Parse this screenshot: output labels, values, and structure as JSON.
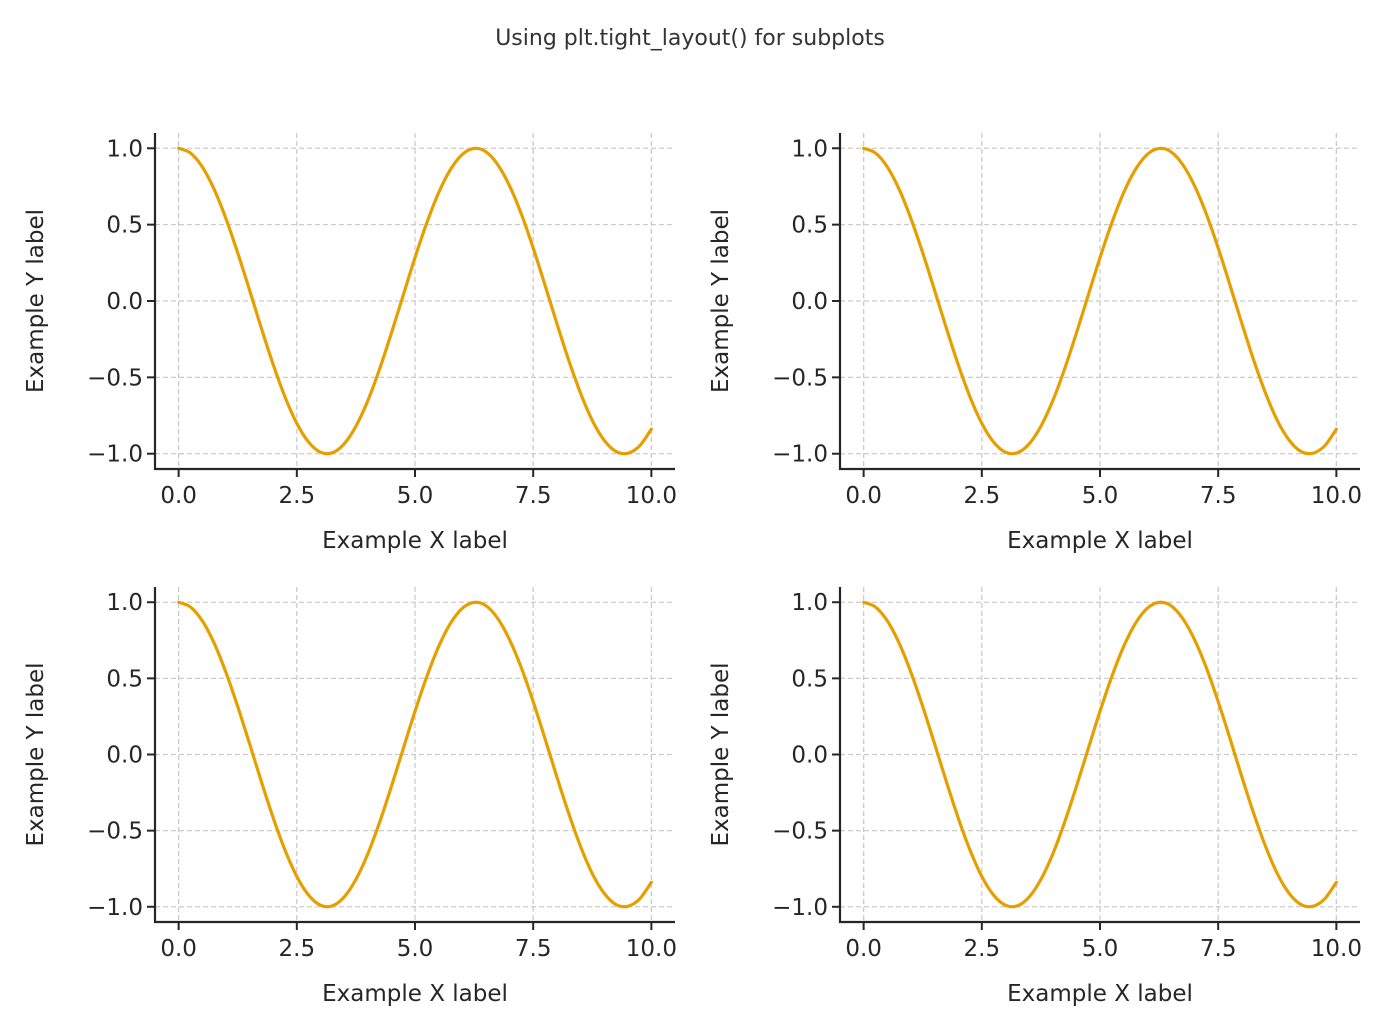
{
  "title": "Using plt.tight_layout() for subplots",
  "colors": {
    "line": "#E69F00",
    "grid": "#cccccc",
    "spine": "#262626",
    "text": "#262626"
  },
  "chart_data": [
    {
      "type": "line",
      "position": "top-left",
      "xlabel": "Example X label",
      "ylabel": "Example Y label",
      "xlim": [
        -0.5,
        10.5
      ],
      "ylim": [
        -1.1,
        1.1
      ],
      "grid": true,
      "xticks": [
        0,
        2.5,
        5,
        7.5,
        10
      ],
      "xtick_labels": [
        "0.0",
        "2.5",
        "5.0",
        "7.5",
        "10.0"
      ],
      "yticks": [
        1,
        0.5,
        0,
        -0.5,
        -1
      ],
      "ytick_labels": [
        "1.0",
        "0.5",
        "0.0",
        "−0.5",
        "−1.0"
      ]
    },
    {
      "type": "line",
      "position": "top-right",
      "xlabel": "Example X label",
      "ylabel": "Example Y label",
      "xlim": [
        -0.5,
        10.5
      ],
      "ylim": [
        -1.1,
        1.1
      ],
      "grid": true,
      "xticks": [
        0,
        2.5,
        5,
        7.5,
        10
      ],
      "xtick_labels": [
        "0.0",
        "2.5",
        "5.0",
        "7.5",
        "10.0"
      ],
      "yticks": [
        1,
        0.5,
        0,
        -0.5,
        -1
      ],
      "ytick_labels": [
        "1.0",
        "0.5",
        "0.0",
        "−0.5",
        "−1.0"
      ]
    },
    {
      "type": "line",
      "position": "bottom-left",
      "xlabel": "Example X label",
      "ylabel": "Example Y label",
      "xlim": [
        -0.5,
        10.5
      ],
      "ylim": [
        -1.1,
        1.1
      ],
      "grid": true,
      "xticks": [
        0,
        2.5,
        5,
        7.5,
        10
      ],
      "xtick_labels": [
        "0.0",
        "2.5",
        "5.0",
        "7.5",
        "10.0"
      ],
      "yticks": [
        1,
        0.5,
        0,
        -0.5,
        -1
      ],
      "ytick_labels": [
        "1.0",
        "0.5",
        "0.0",
        "−0.5",
        "−1.0"
      ]
    },
    {
      "type": "line",
      "position": "bottom-right",
      "xlabel": "Example X label",
      "ylabel": "Example Y label",
      "xlim": [
        -0.5,
        10.5
      ],
      "ylim": [
        -1.1,
        1.1
      ],
      "grid": true,
      "xticks": [
        0,
        2.5,
        5,
        7.5,
        10
      ],
      "xtick_labels": [
        "0.0",
        "2.5",
        "5.0",
        "7.5",
        "10.0"
      ],
      "yticks": [
        1,
        0.5,
        0,
        -0.5,
        -1
      ],
      "ytick_labels": [
        "1.0",
        "0.5",
        "0.0",
        "−0.5",
        "−1.0"
      ]
    }
  ],
  "series": {
    "x": [
      0,
      0.25,
      0.5,
      0.75,
      1,
      1.25,
      1.5,
      1.75,
      2,
      2.25,
      2.5,
      2.75,
      3,
      3.25,
      3.5,
      3.75,
      4,
      4.25,
      4.5,
      4.75,
      5,
      5.25,
      5.5,
      5.75,
      6,
      6.25,
      6.5,
      6.75,
      7,
      7.25,
      7.5,
      7.75,
      8,
      8.25,
      8.5,
      8.75,
      9,
      9.25,
      9.5,
      9.75,
      10
    ],
    "y": [
      1.0,
      0.969,
      0.878,
      0.732,
      0.54,
      0.315,
      0.071,
      -0.178,
      -0.416,
      -0.628,
      -0.801,
      -0.924,
      -0.99,
      -0.994,
      -0.936,
      -0.82,
      -0.654,
      -0.446,
      -0.211,
      0.037,
      0.284,
      0.512,
      0.709,
      0.861,
      0.96,
      0.999,
      0.977,
      0.893,
      0.754,
      0.569,
      0.347,
      0.104,
      -0.146,
      -0.386,
      -0.602,
      -0.782,
      -0.911,
      -0.985,
      -0.997,
      -0.949,
      -0.839
    ]
  }
}
